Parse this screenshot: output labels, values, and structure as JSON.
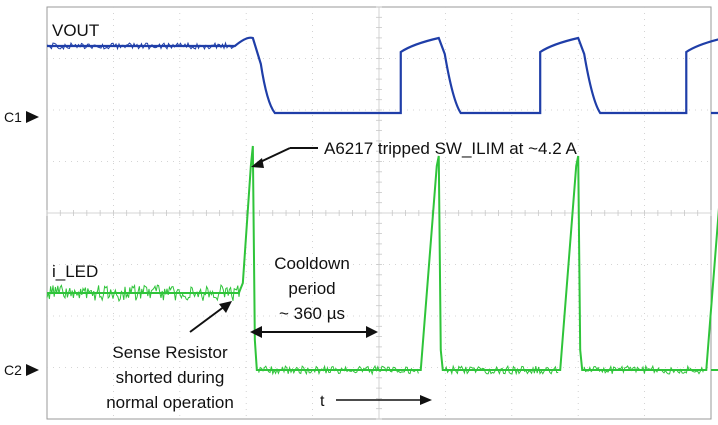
{
  "chart_data": {
    "type": "line",
    "title": "",
    "xlabel": "t",
    "ylabel": "",
    "grid": true,
    "channel_markers": [
      "C1",
      "C2"
    ],
    "series": [
      {
        "name": "VOUT",
        "color": "#1f3ea8",
        "channel": "C1",
        "description_levels": {
          "normal": "high",
          "fault": "low"
        }
      },
      {
        "name": "i_LED",
        "color": "#2fc43a",
        "channel": "C2"
      }
    ],
    "trip_times_div": [
      3.1,
      5.9,
      8.0,
      10.2
    ],
    "cooldown_us": 360,
    "annotations": {
      "trip": "A6217 tripped SW_ILIM at ~4.2 A",
      "cooldown_line1": "Cooldown",
      "cooldown_line2": "period",
      "cooldown_line3": "~ 360 µs",
      "sense_line1": "Sense Resistor",
      "sense_line2": "shorted during",
      "sense_line3": "normal operation"
    },
    "colors": {
      "vout": "#1f3ea8",
      "iled": "#2fc43a",
      "grid": "#c8c8c8",
      "frame": "#9a9a9a"
    }
  }
}
